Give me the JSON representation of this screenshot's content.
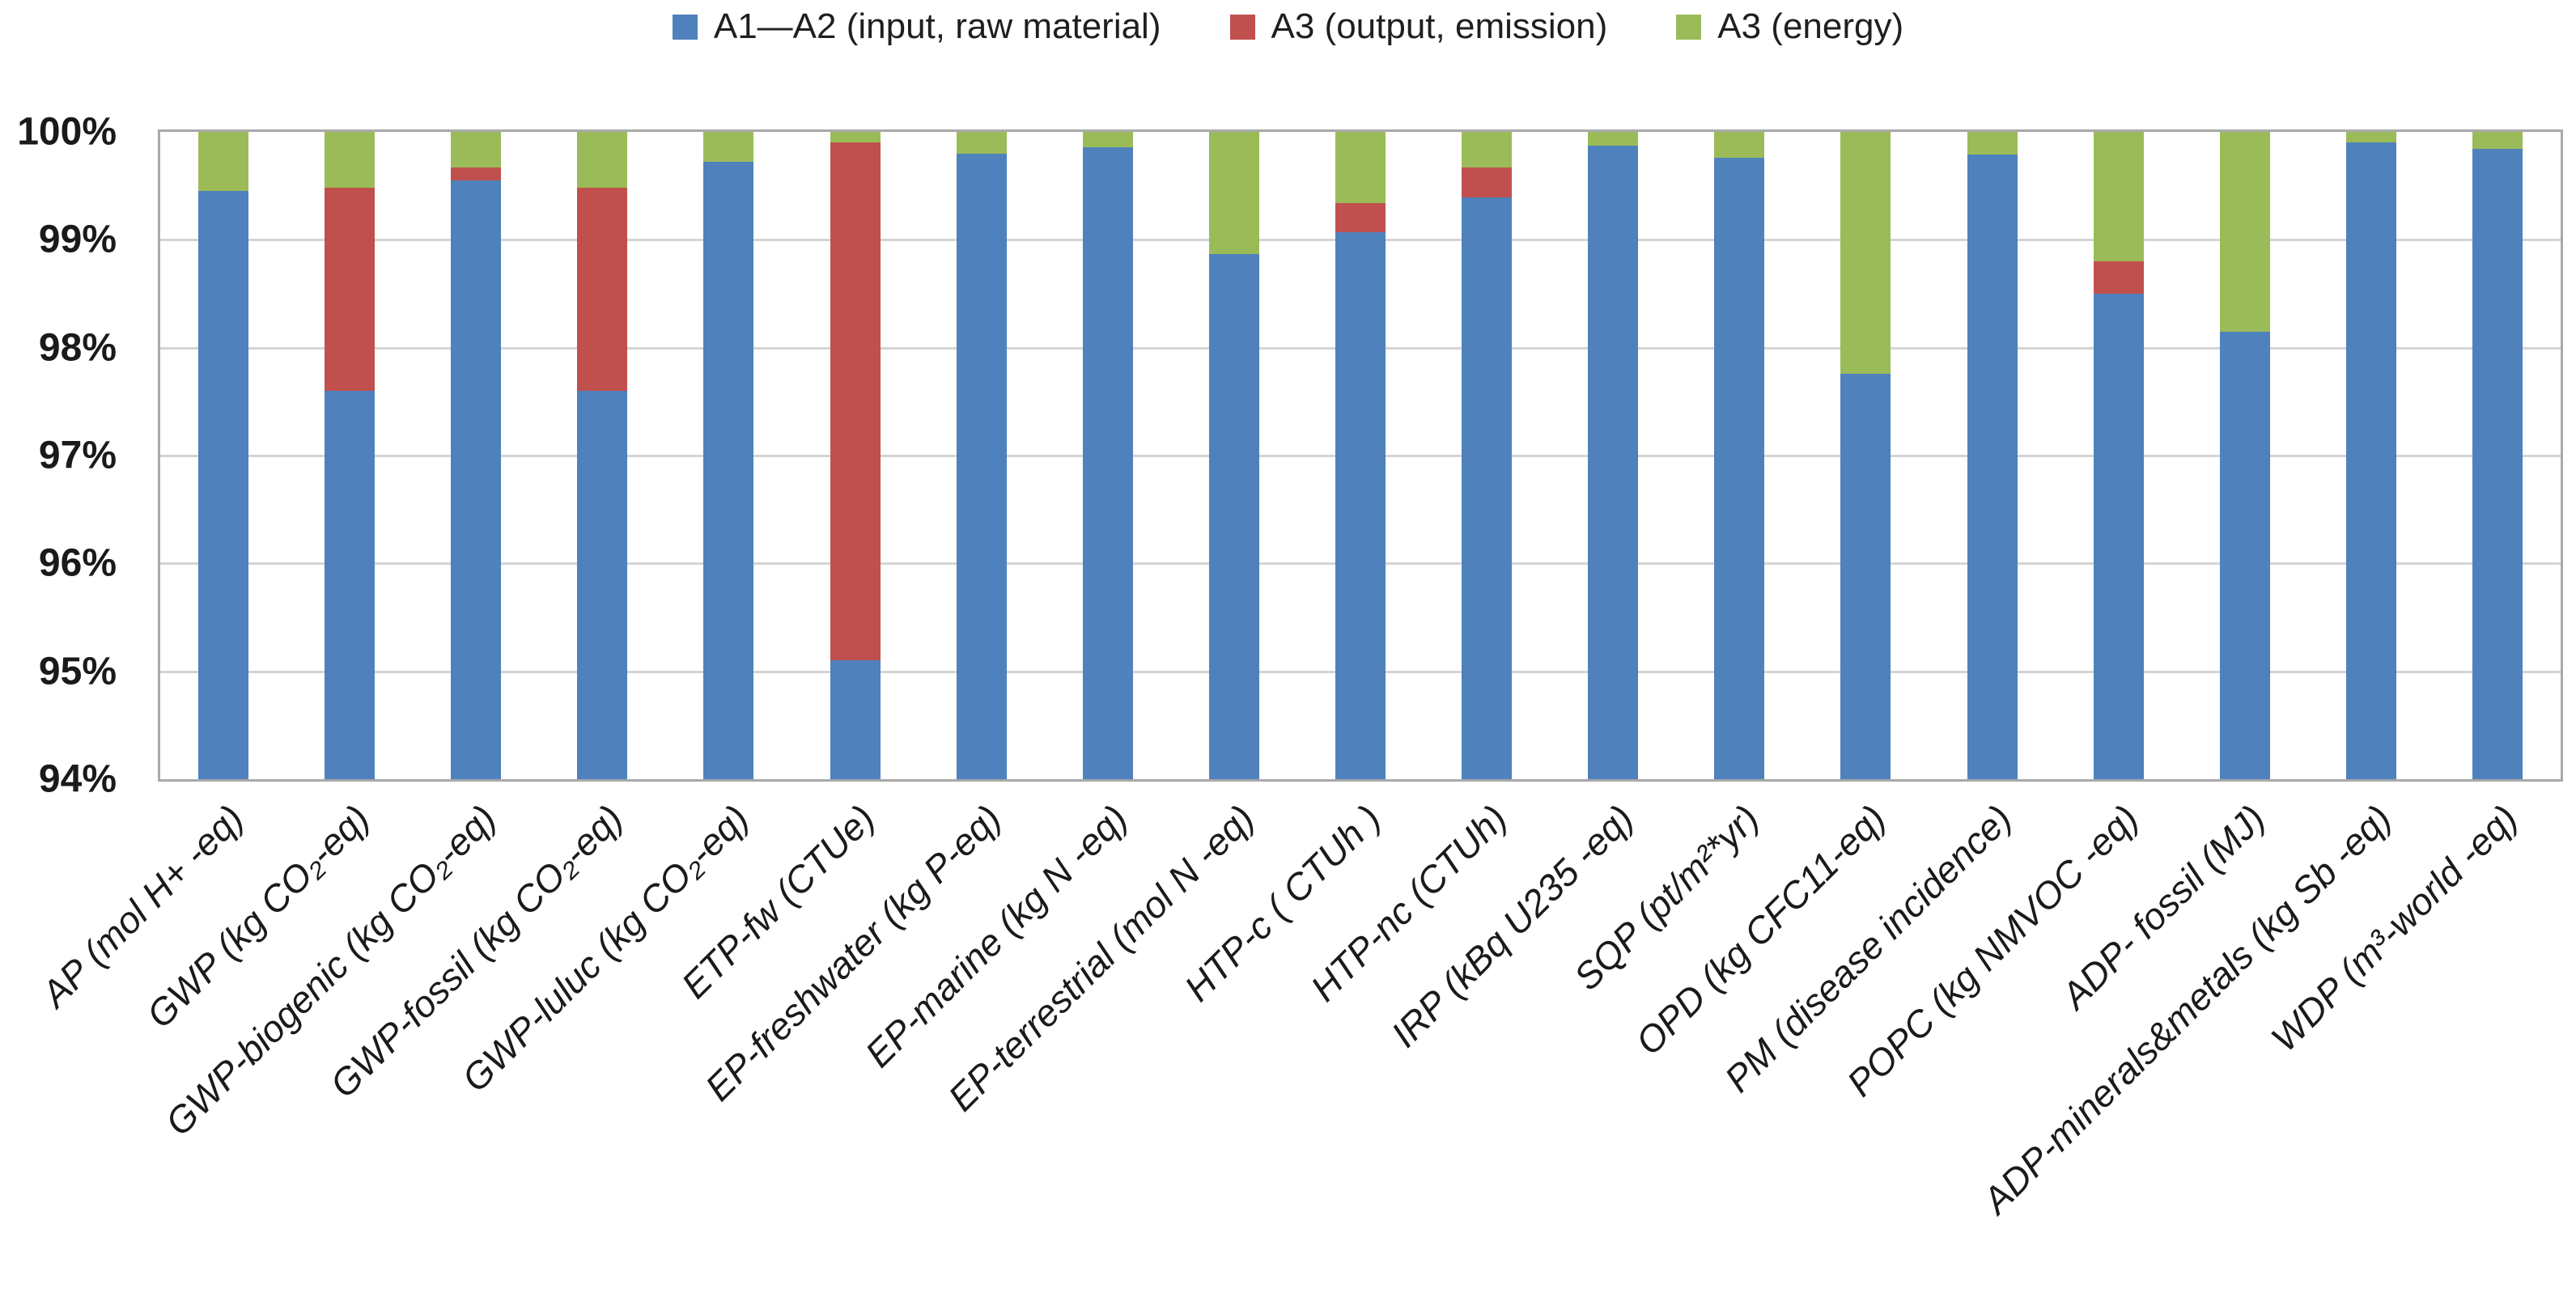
{
  "legend": {
    "items": [
      {
        "label": "A1—A2 (input, raw material)",
        "color": "#4F81BD"
      },
      {
        "label": "A3 (output, emission)",
        "color": "#C0504D"
      },
      {
        "label": "A3 (energy)",
        "color": "#9BBB59"
      }
    ]
  },
  "chart_data": {
    "type": "bar",
    "stacked": true,
    "title": "",
    "xlabel": "",
    "ylabel": "",
    "ylim": [
      94,
      100
    ],
    "yticks": [
      "100%",
      "99%",
      "98%",
      "97%",
      "96%",
      "95%",
      "94%"
    ],
    "grid": true,
    "legend_position": "top",
    "categories": [
      "AP (mol H+ -eq)",
      "GWP (kg CO₂-eq)",
      "GWP-biogenic (kg CO₂-eq)",
      "GWP-fossil (kg CO₂-eq)",
      "GWP-luluc (kg CO₂-eq)",
      "ETP-fw (CTUe)",
      "EP-freshwater (kg P-eq)",
      "EP-marine (kg N -eq)",
      "EP-terrestrial (mol N -eq)",
      "HTP-c ( CTUh )",
      "HTP-nc (CTUh)",
      "IRP (kBq U235 -eq)",
      "SQP (pt/m²*yr)",
      "OPD (kg CFC11-eq)",
      "PM (disease incidence)",
      "POPC (kg NMVOC -eq)",
      "ADP- fossil (MJ)",
      "ADP-minerals&metals (kg Sb -eq)",
      "WDP (m³-world -eq)"
    ],
    "series": [
      {
        "name": "A1—A2 (input, raw material)",
        "color": "#4F81BD",
        "values": [
          99.45,
          97.6,
          99.55,
          97.6,
          99.72,
          95.1,
          99.8,
          99.86,
          98.87,
          99.07,
          99.39,
          99.87,
          99.76,
          97.76,
          99.79,
          98.5,
          98.15,
          99.9,
          99.84
        ]
      },
      {
        "name": "A3 (output, emission)",
        "color": "#C0504D",
        "values": [
          0,
          1.88,
          0.12,
          1.88,
          0,
          4.8,
          0,
          0,
          0,
          0.27,
          0.28,
          0,
          0,
          0,
          0,
          0.3,
          0,
          0,
          0
        ]
      },
      {
        "name": "A3 (energy)",
        "color": "#9BBB59",
        "values": [
          0.55,
          0.52,
          0.33,
          0.52,
          0.28,
          0.1,
          0.2,
          0.14,
          1.13,
          0.66,
          0.33,
          0.13,
          0.24,
          2.24,
          0.21,
          1.2,
          1.85,
          0.1,
          0.16
        ]
      }
    ]
  }
}
